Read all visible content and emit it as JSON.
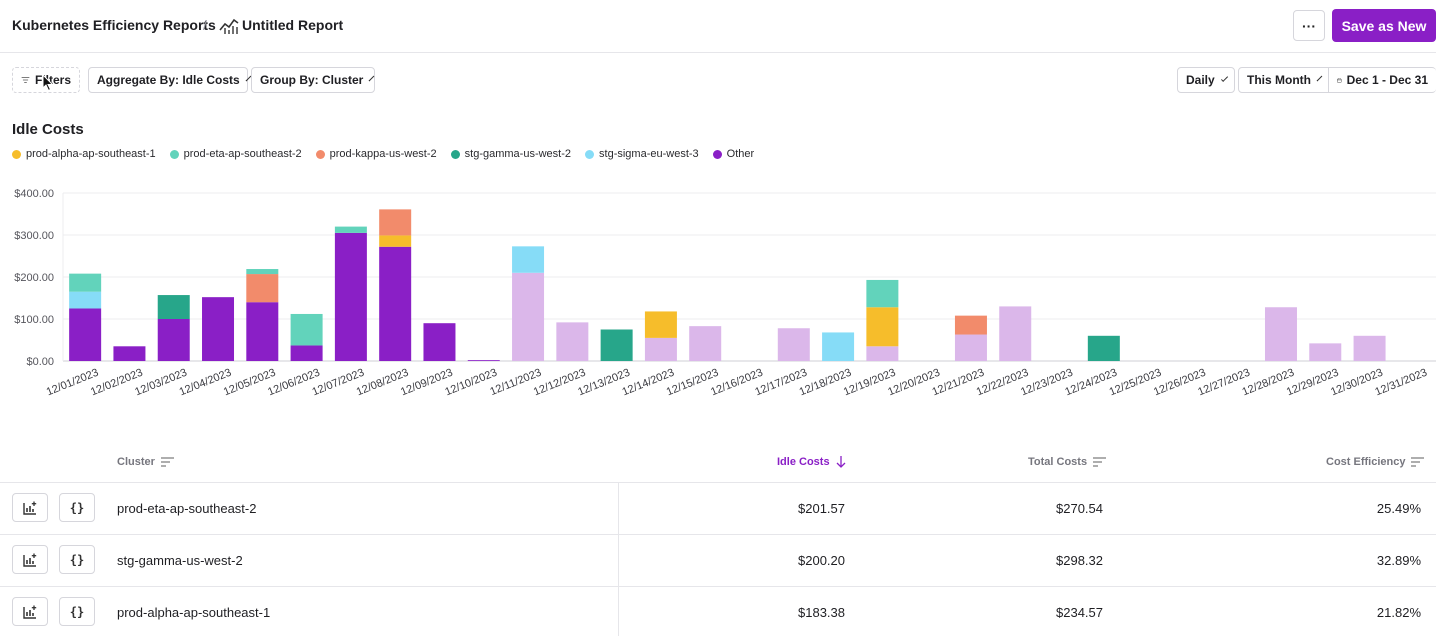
{
  "header": {
    "breadcrumb_root": "Kubernetes Efficiency Reports",
    "separator": "/",
    "report_title": "Untitled Report",
    "more_label": "···",
    "save_label": "Save as New"
  },
  "toolbar": {
    "filters_label": "Filters",
    "aggregate_label": "Aggregate By: Idle Costs",
    "group_label": "Group By: Cluster",
    "granularity_label": "Daily",
    "range_label": "This Month",
    "dates_label": "Dec 1 - Dec 31"
  },
  "chart": {
    "title": "Idle Costs",
    "legend": [
      {
        "name": "prod-alpha-ap-southeast-1",
        "color": "#f6bd2b"
      },
      {
        "name": "prod-eta-ap-southeast-2",
        "color": "#62d3bb"
      },
      {
        "name": "prod-kappa-us-west-2",
        "color": "#f28b6b"
      },
      {
        "name": "stg-gamma-us-west-2",
        "color": "#27a68a"
      },
      {
        "name": "stg-sigma-eu-west-3",
        "color": "#86dcf7"
      },
      {
        "name": "Other",
        "color": "#8a1fc6"
      }
    ]
  },
  "chart_data": {
    "type": "bar",
    "stacked": true,
    "title": "Idle Costs",
    "ylim": [
      0,
      400
    ],
    "yticks": [
      "$0.00",
      "$100.00",
      "$200.00",
      "$300.00",
      "$400.00"
    ],
    "categories": [
      "12/01/2023",
      "12/02/2023",
      "12/03/2023",
      "12/04/2023",
      "12/05/2023",
      "12/06/2023",
      "12/07/2023",
      "12/08/2023",
      "12/09/2023",
      "12/10/2023",
      "12/11/2023",
      "12/12/2023",
      "12/13/2023",
      "12/14/2023",
      "12/15/2023",
      "12/16/2023",
      "12/17/2023",
      "12/18/2023",
      "12/19/2023",
      "12/20/2023",
      "12/21/2023",
      "12/22/2023",
      "12/23/2023",
      "12/24/2023",
      "12/25/2023",
      "12/26/2023",
      "12/27/2023",
      "12/28/2023",
      "12/29/2023",
      "12/30/2023",
      "12/31/2023"
    ],
    "faded_from_index": 10,
    "series": [
      {
        "name": "Other",
        "color": "#8a1fc6",
        "faded_color": "#dbb7ea",
        "values": [
          125,
          35,
          100,
          152,
          140,
          37,
          305,
          272,
          90,
          2,
          210,
          92,
          0,
          55,
          83,
          0,
          78,
          0,
          35,
          0,
          63,
          130,
          0,
          0,
          0,
          0,
          0,
          128,
          42,
          60,
          0
        ]
      },
      {
        "name": "stg-gamma-us-west-2",
        "color": "#27a68a",
        "values": [
          0,
          0,
          57,
          0,
          0,
          0,
          0,
          0,
          0,
          0,
          0,
          0,
          75,
          0,
          0,
          0,
          0,
          0,
          0,
          0,
          0,
          0,
          0,
          60,
          0,
          0,
          0,
          0,
          0,
          0,
          0
        ]
      },
      {
        "name": "prod-alpha-ap-southeast-1",
        "color": "#f6bd2b",
        "values": [
          0,
          0,
          0,
          0,
          0,
          0,
          0,
          27,
          0,
          0,
          0,
          0,
          0,
          63,
          0,
          0,
          0,
          0,
          93,
          0,
          0,
          0,
          0,
          0,
          0,
          0,
          0,
          0,
          0,
          0,
          0
        ]
      },
      {
        "name": "prod-kappa-us-west-2",
        "color": "#f28b6b",
        "values": [
          0,
          0,
          0,
          0,
          67,
          0,
          0,
          62,
          0,
          0,
          0,
          0,
          0,
          0,
          0,
          0,
          0,
          0,
          0,
          0,
          45,
          0,
          0,
          0,
          0,
          0,
          0,
          0,
          0,
          0,
          0
        ]
      },
      {
        "name": "stg-sigma-eu-west-3",
        "color": "#86dcf7",
        "values": [
          40,
          0,
          0,
          0,
          0,
          0,
          0,
          0,
          0,
          0,
          63,
          0,
          0,
          0,
          0,
          0,
          0,
          68,
          0,
          0,
          0,
          0,
          0,
          0,
          0,
          0,
          0,
          0,
          0,
          0,
          0
        ]
      },
      {
        "name": "prod-eta-ap-southeast-2",
        "color": "#62d3bb",
        "values": [
          43,
          0,
          0,
          0,
          12,
          75,
          15,
          0,
          0,
          0,
          0,
          0,
          0,
          0,
          0,
          0,
          0,
          0,
          65,
          0,
          0,
          0,
          0,
          0,
          0,
          0,
          0,
          0,
          0,
          0,
          0
        ]
      }
    ]
  },
  "table": {
    "columns": {
      "cluster": "Cluster",
      "idle": "Idle Costs",
      "total": "Total Costs",
      "efficiency": "Cost Efficiency"
    },
    "rows": [
      {
        "cluster": "prod-eta-ap-southeast-2",
        "idle": "$201.57",
        "total": "$270.54",
        "efficiency": "25.49%"
      },
      {
        "cluster": "stg-gamma-us-west-2",
        "idle": "$200.20",
        "total": "$298.32",
        "efficiency": "32.89%"
      },
      {
        "cluster": "prod-alpha-ap-southeast-1",
        "idle": "$183.38",
        "total": "$234.57",
        "efficiency": "21.82%"
      }
    ],
    "row_icon_chart": "chart-add-icon",
    "row_icon_code": "{}"
  }
}
